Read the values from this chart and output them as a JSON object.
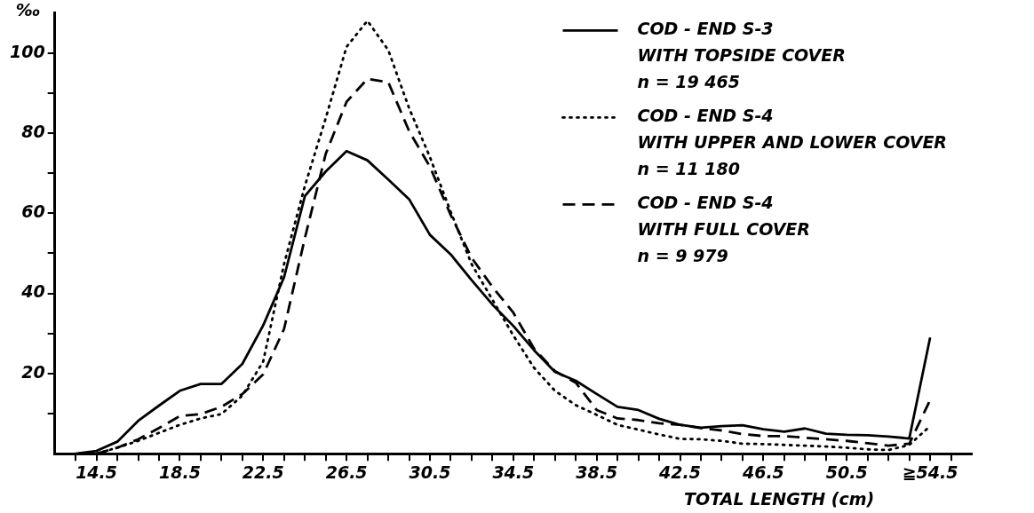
{
  "chart_data": {
    "type": "line",
    "ylabel": "‰",
    "xlabel": "TOTAL LENGTH (cm)",
    "x": [
      13.5,
      14.5,
      15.5,
      16.5,
      17.5,
      18.5,
      19.5,
      20.5,
      21.5,
      22.5,
      23.5,
      24.5,
      25.5,
      26.5,
      27.5,
      28.5,
      29.5,
      30.5,
      31.5,
      32.5,
      33.5,
      34.5,
      35.5,
      36.5,
      37.5,
      38.5,
      39.5,
      40.5,
      41.5,
      42.5,
      43.5,
      44.5,
      45.5,
      46.5,
      47.5,
      48.5,
      49.5,
      50.5,
      51.5,
      52.5,
      53.5,
      54.5
    ],
    "series": [
      {
        "name": "COD - END S-3\nWITH TOPSIDE COVER\nn = 19 465",
        "color": "#000000",
        "line_style": "solid",
        "values": [
          0,
          0.7,
          3,
          8.2,
          12,
          15.7,
          17.4,
          17.4,
          22.4,
          32,
          44,
          64.3,
          70.4,
          75.5,
          73.2,
          68.4,
          63.5,
          54.6,
          49.7,
          43.3,
          37.2,
          31.9,
          25.8,
          20.4,
          18.2,
          14.9,
          11.7,
          10.9,
          8.7,
          7.2,
          6.5,
          6.9,
          7.1,
          6.1,
          5.5,
          6.3,
          5,
          4.7,
          4.6,
          4.3,
          3.8,
          29
        ]
      },
      {
        "name": "COD - END S-4\nWITH UPPER AND LOWER COVER\nn = 11 180",
        "color": "#000000",
        "line_style": "dotted",
        "values": [
          null,
          0,
          1.5,
          3.2,
          5.2,
          7.2,
          8.8,
          9.9,
          14.5,
          23,
          47.3,
          66.8,
          83.7,
          101.5,
          108,
          100.7,
          86.2,
          74,
          60.3,
          47.3,
          38.4,
          29.5,
          21.4,
          15.7,
          12.1,
          9.7,
          7.2,
          6,
          4.8,
          3.7,
          3.6,
          3.2,
          2.5,
          2.4,
          2.2,
          2,
          1.8,
          1.5,
          1.1,
          0.9,
          2.2,
          6.9
        ]
      },
      {
        "name": "COD - END S-4\nWITH FULL COVER\nn = 9 979",
        "color": "#000000",
        "line_style": "dashed",
        "values": [
          null,
          0,
          1.5,
          3.6,
          6.4,
          9.4,
          9.9,
          11.7,
          14.9,
          19.8,
          31.1,
          53.8,
          74.8,
          87.8,
          93.5,
          92.7,
          80.5,
          71.6,
          59.5,
          48.9,
          41.6,
          35.2,
          26.2,
          20.6,
          17.7,
          10.9,
          8.8,
          8.4,
          7.6,
          7.2,
          6.4,
          5.8,
          4.9,
          4.4,
          4.4,
          4,
          3.6,
          3.2,
          2.6,
          2,
          2.5,
          13.4
        ]
      }
    ],
    "xlim": [
      12.5,
      56.5
    ],
    "xticks": [
      {
        "value": 13.5,
        "label": null
      },
      14.5,
      {
        "value": 15.5,
        "label": null
      },
      {
        "value": 16.5,
        "label": null
      },
      {
        "value": 17.5,
        "label": null
      },
      18.5,
      {
        "value": 19.5,
        "label": null
      },
      {
        "value": 20.5,
        "label": null
      },
      {
        "value": 21.5,
        "label": null
      },
      22.5,
      {
        "value": 23.5,
        "label": null
      },
      {
        "value": 24.5,
        "label": null
      },
      {
        "value": 25.5,
        "label": null
      },
      26.5,
      {
        "value": 27.5,
        "label": null
      },
      {
        "value": 28.5,
        "label": null
      },
      {
        "value": 29.5,
        "label": null
      },
      30.5,
      {
        "value": 31.5,
        "label": null
      },
      {
        "value": 32.5,
        "label": null
      },
      {
        "value": 33.5,
        "label": null
      },
      34.5,
      {
        "value": 35.5,
        "label": null
      },
      {
        "value": 36.5,
        "label": null
      },
      {
        "value": 37.5,
        "label": null
      },
      38.5,
      {
        "value": 39.5,
        "label": null
      },
      {
        "value": 40.5,
        "label": null
      },
      {
        "value": 41.5,
        "label": null
      },
      42.5,
      {
        "value": 43.5,
        "label": null
      },
      {
        "value": 44.5,
        "label": null
      },
      {
        "value": 45.5,
        "label": null
      },
      46.5,
      {
        "value": 47.5,
        "label": null
      },
      {
        "value": 48.5,
        "label": null
      },
      {
        "value": 49.5,
        "label": null
      },
      50.5,
      {
        "value": 51.5,
        "label": null
      },
      {
        "value": 52.5,
        "label": null
      },
      {
        "value": 53.5,
        "label": null
      },
      {
        "value": 54.5,
        "label": "≧54.5"
      },
      {
        "value": 55.5,
        "label": null
      }
    ],
    "ylim": [
      0,
      110
    ],
    "yticks": [
      {
        "value": 10,
        "label": null
      },
      20,
      {
        "value": 30,
        "label": null
      },
      40,
      {
        "value": 50,
        "label": null
      },
      60,
      {
        "value": 70,
        "label": null
      },
      80,
      {
        "value": 90,
        "label": null
      },
      100
    ],
    "grid": false,
    "legend": "top right",
    "marker": "none"
  }
}
